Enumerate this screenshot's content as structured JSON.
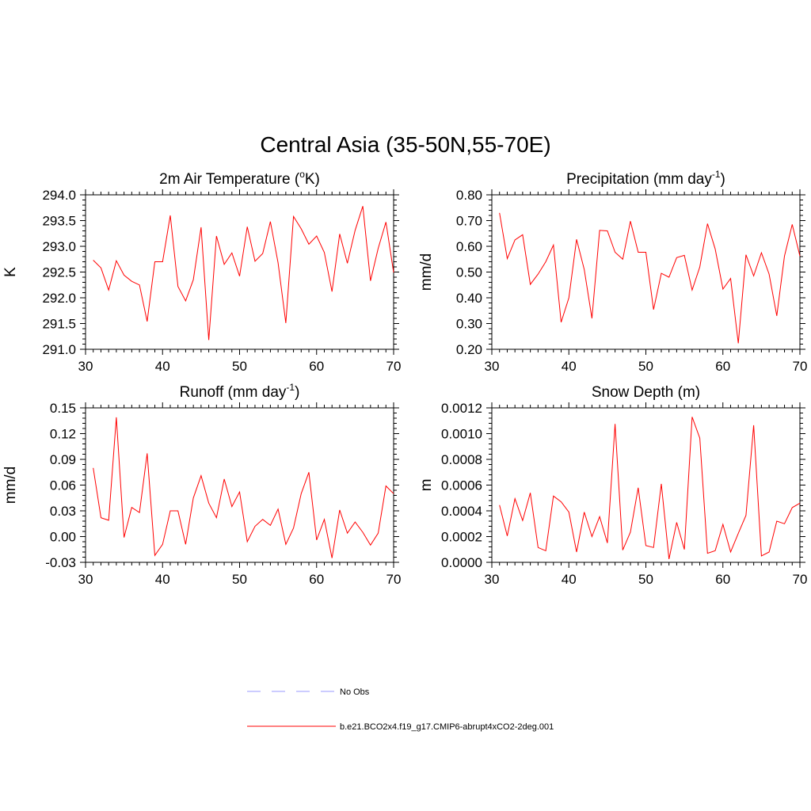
{
  "title": "Central Asia (35-50N,55-70E)",
  "colors": {
    "series": "#ff0000",
    "obs": "#9999ff",
    "axis": "#000000"
  },
  "legend": [
    {
      "label": "No Obs",
      "style": "dashed",
      "color": "#9999ff"
    },
    {
      "label": "b.e21.BCO2x4.f19_g17.CMIP6-abrupt4xCO2-2deg.001",
      "style": "solid",
      "color": "#ff0000"
    }
  ],
  "chart_data": [
    {
      "type": "line",
      "title": "2m Air Temperature (",
      "title_sup": "o",
      "title_end": "K)",
      "ylabel": "K",
      "xlim": [
        30,
        70
      ],
      "ylim": [
        291.0,
        294.0
      ],
      "xticks": [
        30,
        40,
        50,
        60,
        70
      ],
      "yticks": [
        "291.0",
        "291.5",
        "292.0",
        "292.5",
        "293.0",
        "293.5",
        "294.0"
      ],
      "ytick_values": [
        291.0,
        291.5,
        292.0,
        292.5,
        293.0,
        293.5,
        294.0
      ],
      "x": [
        31,
        32,
        33,
        34,
        35,
        36,
        37,
        38,
        39,
        40,
        41,
        42,
        43,
        44,
        45,
        46,
        47,
        48,
        49,
        50,
        51,
        52,
        53,
        54,
        55,
        56,
        57,
        58,
        59,
        60,
        61,
        62,
        63,
        64,
        65,
        66,
        67,
        68,
        69,
        70
      ],
      "series": [
        {
          "values": [
            292.73,
            292.58,
            292.15,
            292.72,
            292.44,
            292.32,
            292.25,
            291.54,
            292.7,
            292.7,
            293.6,
            292.22,
            291.94,
            292.35,
            293.37,
            291.18,
            293.2,
            292.65,
            292.87,
            292.42,
            293.38,
            292.71,
            292.86,
            293.48,
            292.68,
            291.51,
            293.58,
            293.34,
            293.04,
            293.2,
            292.88,
            292.12,
            293.24,
            292.67,
            293.31,
            293.78,
            292.33,
            292.96,
            293.47,
            292.49
          ]
        }
      ]
    },
    {
      "type": "line",
      "title": "Precipitation (mm day",
      "title_sup": "-1",
      "title_end": ")",
      "ylabel": "mm/d",
      "xlim": [
        30,
        70
      ],
      "ylim": [
        0.2,
        0.8
      ],
      "xticks": [
        30,
        40,
        50,
        60,
        70
      ],
      "yticks": [
        "0.20",
        "0.30",
        "0.40",
        "0.50",
        "0.60",
        "0.70",
        "0.80"
      ],
      "ytick_values": [
        0.2,
        0.3,
        0.4,
        0.5,
        0.6,
        0.7,
        0.8
      ],
      "x": [
        31,
        32,
        33,
        34,
        35,
        36,
        37,
        38,
        39,
        40,
        41,
        42,
        43,
        44,
        45,
        46,
        47,
        48,
        49,
        50,
        51,
        52,
        53,
        54,
        55,
        56,
        57,
        58,
        59,
        60,
        61,
        62,
        63,
        64,
        65,
        66,
        67,
        68,
        69,
        70
      ],
      "series": [
        {
          "values": [
            0.73,
            0.552,
            0.625,
            0.645,
            0.452,
            0.492,
            0.54,
            0.605,
            0.305,
            0.4,
            0.627,
            0.51,
            0.32,
            0.662,
            0.66,
            0.577,
            0.55,
            0.698,
            0.577,
            0.577,
            0.354,
            0.495,
            0.48,
            0.556,
            0.565,
            0.43,
            0.52,
            0.688,
            0.59,
            0.434,
            0.475,
            0.223,
            0.567,
            0.485,
            0.575,
            0.492,
            0.33,
            0.562,
            0.685,
            0.562
          ]
        }
      ]
    },
    {
      "type": "line",
      "title": "Runoff (mm day",
      "title_sup": "-1",
      "title_end": ")",
      "ylabel": "mm/d",
      "xlim": [
        30,
        70
      ],
      "ylim": [
        -0.03,
        0.15
      ],
      "xticks": [
        30,
        40,
        50,
        60,
        70
      ],
      "yticks": [
        "-0.03",
        "0.00",
        "0.03",
        "0.06",
        "0.09",
        "0.12",
        "0.15"
      ],
      "ytick_values": [
        -0.03,
        0.0,
        0.03,
        0.06,
        0.09,
        0.12,
        0.15
      ],
      "x": [
        31,
        32,
        33,
        34,
        35,
        36,
        37,
        38,
        39,
        40,
        41,
        42,
        43,
        44,
        45,
        46,
        47,
        48,
        49,
        50,
        51,
        52,
        53,
        54,
        55,
        56,
        57,
        58,
        59,
        60,
        61,
        62,
        63,
        64,
        65,
        66,
        67,
        68,
        69,
        70
      ],
      "series": [
        {
          "values": [
            0.08,
            0.022,
            0.019,
            0.139,
            -0.001,
            0.034,
            0.028,
            0.097,
            -0.022,
            -0.009,
            0.03,
            0.03,
            -0.009,
            0.045,
            0.071,
            0.039,
            0.022,
            0.067,
            0.035,
            0.052,
            -0.006,
            0.012,
            0.02,
            0.013,
            0.032,
            -0.009,
            0.01,
            0.05,
            0.075,
            -0.004,
            0.02,
            -0.025,
            0.031,
            0.004,
            0.017,
            0.005,
            -0.01,
            0.004,
            0.059,
            0.05
          ]
        }
      ]
    },
    {
      "type": "line",
      "title": "Snow Depth (m)",
      "title_sup": "",
      "title_end": "",
      "ylabel": "m",
      "xlim": [
        30,
        70
      ],
      "ylim": [
        0.0,
        0.0012
      ],
      "xticks": [
        30,
        40,
        50,
        60,
        70
      ],
      "yticks": [
        "0.0000",
        "0.0002",
        "0.0004",
        "0.0006",
        "0.0008",
        "0.0010",
        "0.0012"
      ],
      "ytick_values": [
        0.0,
        0.0002,
        0.0004,
        0.0006,
        0.0008,
        0.001,
        0.0012
      ],
      "x": [
        31,
        32,
        33,
        34,
        35,
        36,
        37,
        38,
        39,
        40,
        41,
        42,
        43,
        44,
        45,
        46,
        47,
        48,
        49,
        50,
        51,
        52,
        53,
        54,
        55,
        56,
        57,
        58,
        59,
        60,
        61,
        62,
        63,
        64,
        65,
        66,
        67,
        68,
        69,
        70
      ],
      "series": [
        {
          "values": [
            0.000445,
            0.000205,
            0.000495,
            0.000325,
            0.00054,
            0.000115,
            9e-05,
            0.000515,
            0.00047,
            0.00039,
            8e-05,
            0.00039,
            0.0002,
            0.000355,
            0.00015,
            0.001075,
            9.5e-05,
            0.000235,
            0.00058,
            0.00013,
            0.000115,
            0.00061,
            2.5e-05,
            0.00031,
            0.0001,
            0.00113,
            0.000965,
            7e-05,
            9e-05,
            0.000295,
            8e-05,
            0.000225,
            0.000365,
            0.001065,
            5e-05,
            8e-05,
            0.00032,
            0.0003,
            0.000425,
            0.00046
          ]
        }
      ]
    }
  ]
}
